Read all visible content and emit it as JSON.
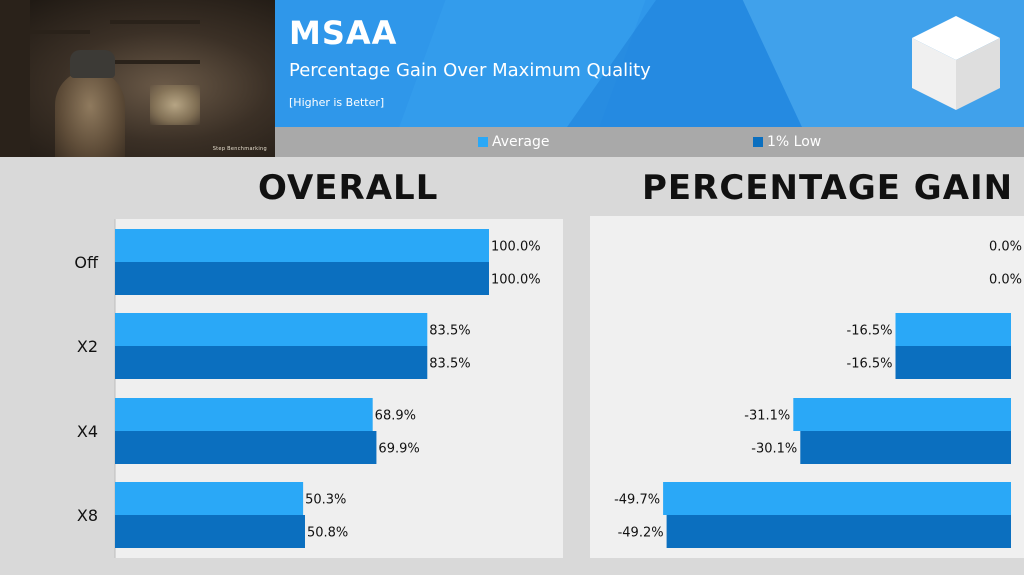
{
  "header": {
    "title": "MSAA",
    "subtitle": "Percentage Gain Over Maximum Quality",
    "note": "[Higher is Better]",
    "thumbnail_watermark": "Step Benchmarking",
    "colors": {
      "banner": "#2f97ea",
      "legend_bar": "#a9a9a9"
    }
  },
  "legend": [
    {
      "label": "Average",
      "color": "#2aa8f7"
    },
    {
      "label": "1% Low",
      "color": "#0b6fbf"
    }
  ],
  "panels": {
    "overall_title": "OVERALL",
    "gain_title": "PERCENTAGE GAIN"
  },
  "chart_data": [
    {
      "type": "bar",
      "orientation": "horizontal",
      "title": "OVERALL",
      "categories": [
        "Off",
        "X2",
        "X4",
        "X8"
      ],
      "series": [
        {
          "name": "Average",
          "values": [
            100.0,
            83.5,
            68.9,
            50.3
          ],
          "labels": [
            "100.0%",
            "83.5%",
            "68.9%",
            "50.3%"
          ]
        },
        {
          "name": "1% Low",
          "values": [
            100.0,
            83.5,
            69.9,
            50.8
          ],
          "labels": [
            "100.0%",
            "83.5%",
            "69.9%",
            "50.8%"
          ]
        }
      ],
      "xlim": [
        0,
        120
      ]
    },
    {
      "type": "bar",
      "orientation": "horizontal",
      "title": "PERCENTAGE GAIN",
      "categories": [
        "Off",
        "X2",
        "X4",
        "X8"
      ],
      "series": [
        {
          "name": "Average",
          "values": [
            0.0,
            -16.5,
            -31.1,
            -49.7
          ],
          "labels": [
            "0.0%",
            "-16.5%",
            "-31.1%",
            "-49.7%"
          ]
        },
        {
          "name": "1% Low",
          "values": [
            0.0,
            -16.5,
            -30.1,
            -49.2
          ],
          "labels": [
            "0.0%",
            "-16.5%",
            "-30.1%",
            "-49.2%"
          ]
        }
      ],
      "xlim": [
        -60,
        0
      ]
    }
  ]
}
